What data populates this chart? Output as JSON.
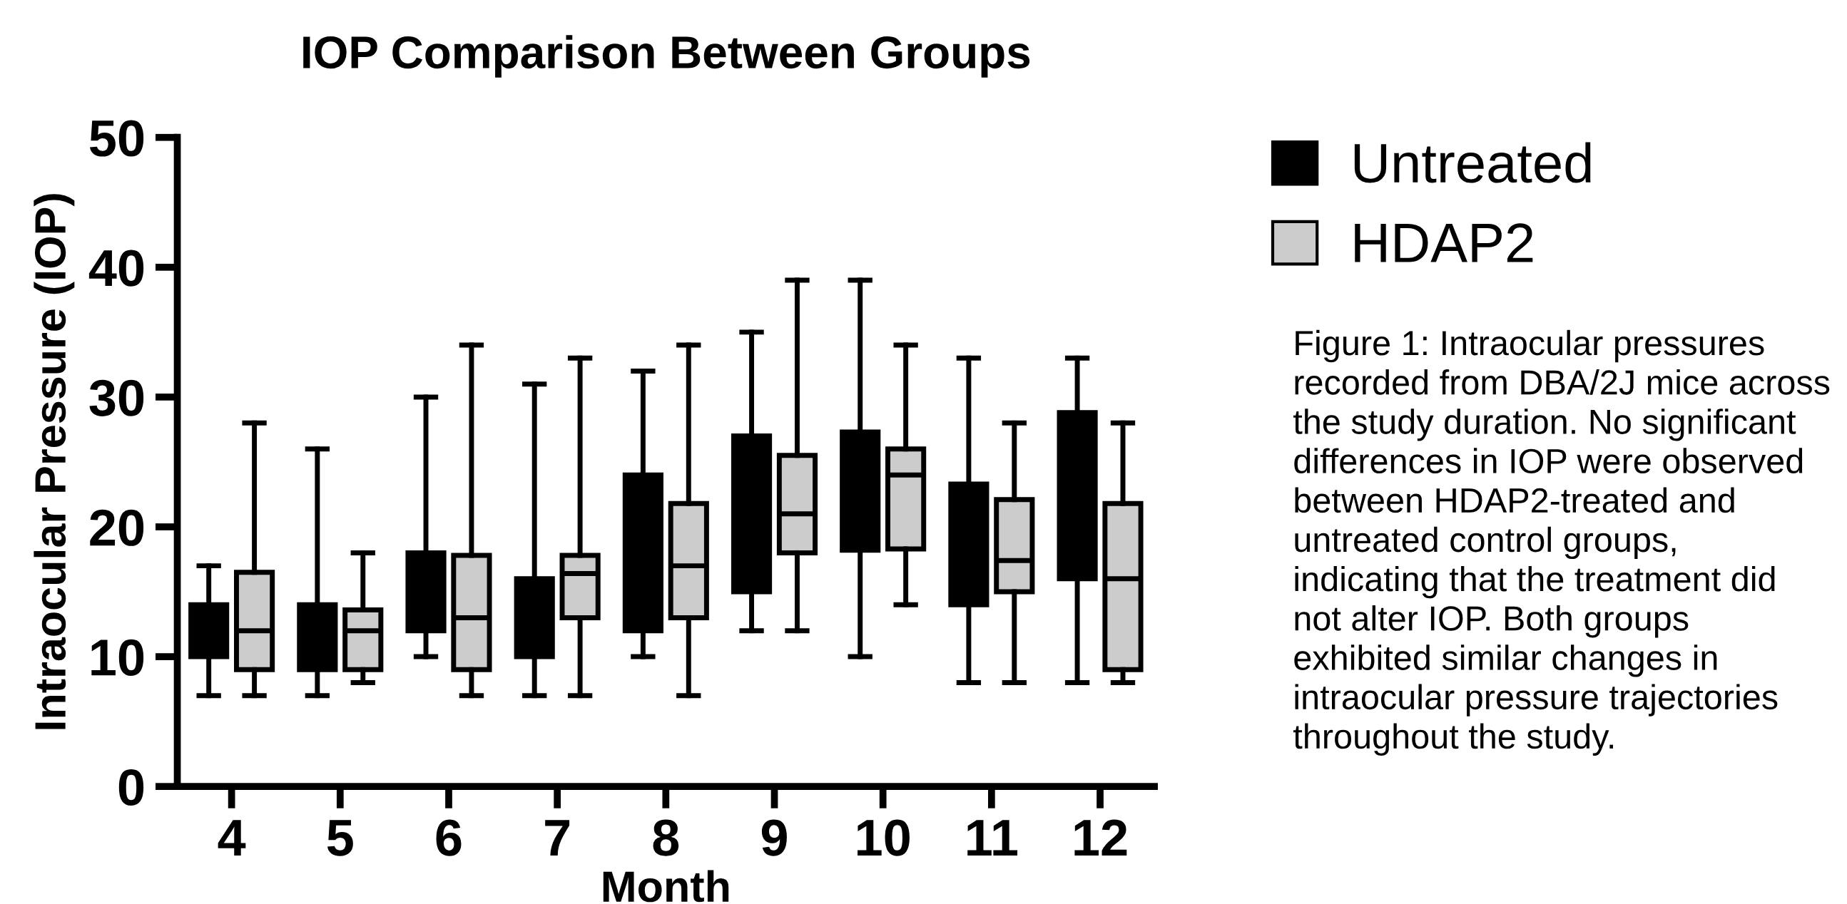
{
  "chart_data": {
    "type": "box",
    "title": "IOP Comparison Between Groups",
    "xlabel": "Month",
    "ylabel": "Intraocular Pressure (IOP)",
    "categories": [
      "4",
      "5",
      "6",
      "7",
      "8",
      "9",
      "10",
      "11",
      "12"
    ],
    "ylim": [
      0,
      50
    ],
    "yticks": [
      0,
      10,
      20,
      30,
      40,
      50
    ],
    "grid": false,
    "legend": "top right",
    "series": [
      {
        "name": "Untreated",
        "color": "#000000",
        "boxes": [
          {
            "low": 7,
            "q1": 10,
            "median": 12,
            "q3": 14,
            "high": 17
          },
          {
            "low": 7,
            "q1": 9,
            "median": 12,
            "q3": 14,
            "high": 26
          },
          {
            "low": 10,
            "q1": 12,
            "median": 14,
            "q3": 18,
            "high": 30
          },
          {
            "low": 7,
            "q1": 10,
            "median": 12,
            "q3": 16,
            "high": 31
          },
          {
            "low": 10,
            "q1": 12,
            "median": 19,
            "q3": 24,
            "high": 32
          },
          {
            "low": 12,
            "q1": 15,
            "median": 18,
            "q3": 27,
            "high": 35
          },
          {
            "low": 10,
            "q1": 18.2,
            "median": 23,
            "q3": 27.3,
            "high": 39
          },
          {
            "low": 8,
            "q1": 14,
            "median": 19,
            "q3": 23.3,
            "high": 33
          },
          {
            "low": 8,
            "q1": 16,
            "median": 21,
            "q3": 28.8,
            "high": 33
          }
        ]
      },
      {
        "name": "HDAP2",
        "color": "#cccccc",
        "boxes": [
          {
            "low": 7,
            "q1": 9,
            "median": 12,
            "q3": 16.5,
            "high": 28
          },
          {
            "low": 8,
            "q1": 9,
            "median": 12,
            "q3": 13.6,
            "high": 18
          },
          {
            "low": 7,
            "q1": 9,
            "median": 13,
            "q3": 17.8,
            "high": 34
          },
          {
            "low": 7,
            "q1": 13,
            "median": 16.4,
            "q3": 17.8,
            "high": 33
          },
          {
            "low": 7,
            "q1": 13,
            "median": 17,
            "q3": 21.8,
            "high": 34
          },
          {
            "low": 12,
            "q1": 18,
            "median": 21,
            "q3": 25.5,
            "high": 39
          },
          {
            "low": 14,
            "q1": 18.3,
            "median": 24,
            "q3": 26,
            "high": 34
          },
          {
            "low": 8,
            "q1": 15,
            "median": 17.4,
            "q3": 22.1,
            "high": 28
          },
          {
            "low": 8,
            "q1": 9,
            "median": 16,
            "q3": 21.8,
            "high": 28
          }
        ]
      }
    ],
    "annotations": [
      "Figure 1: Intraocular pressures\nrecorded from DBA/2J mice across\nthe study duration. No significant\ndifferences in IOP were observed\nbetween HDAP2-treated and\nuntreated control groups,\nindicating that the treatment did\nnot alter IOP. Both groups\nexhibited similar changes in\nintraocular pressure trajectories\nthroughout the study."
    ]
  }
}
